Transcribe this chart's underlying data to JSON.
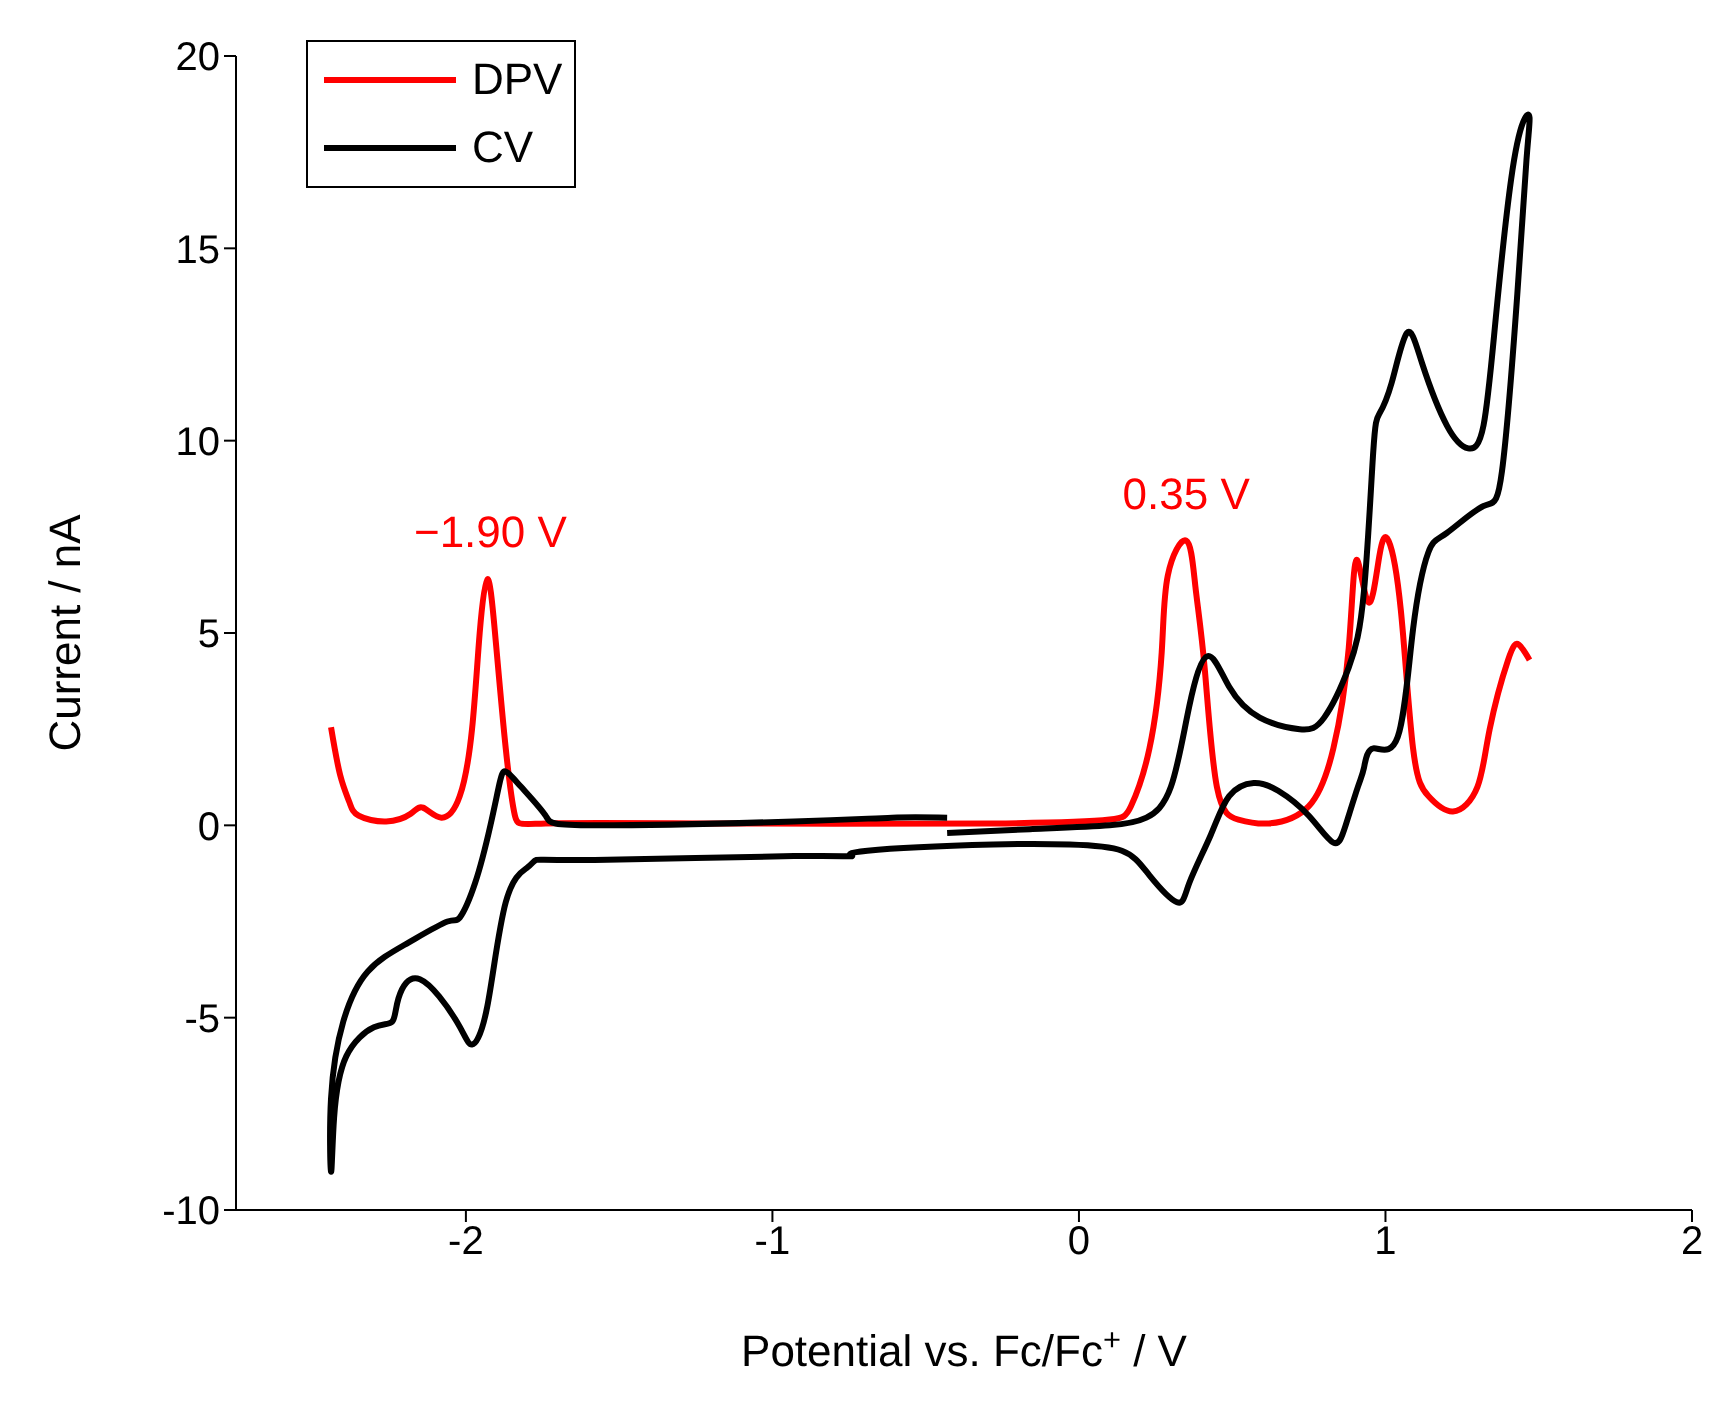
{
  "chart_data": {
    "type": "line",
    "xlabel": "Potential vs. Fc/Fc$^{+}$ / V",
    "ylabel": "Current / nA",
    "xlim": [
      -2.75,
      2
    ],
    "xticks": [
      -2,
      -1,
      0,
      1,
      2
    ],
    "ylim": [
      -10,
      20
    ],
    "yticks": [
      -10,
      -5,
      0,
      5,
      10,
      15,
      20
    ],
    "grid": false,
    "legend": "top left",
    "marker": "none",
    "line_style": "solid",
    "annotations": [
      {
        "text": "−1.90 V",
        "x": -1.92,
        "y": 6.4
      },
      {
        "text": "0.35 V",
        "x": 0.35,
        "y": 7.4
      }
    ],
    "series": [
      {
        "name": "DPV",
        "color": "#ff0000",
        "x": [
          -2.44,
          -2.41,
          -2.38,
          -2.35,
          -2.26,
          -2.18,
          -2.14,
          -2.08,
          -2.02,
          -1.98,
          -1.955,
          -1.93,
          -1.905,
          -1.87,
          -1.84,
          -1.74,
          -1.2,
          -0.28,
          0.1,
          0.17,
          0.23,
          0.27,
          0.29,
          0.35,
          0.38,
          0.41,
          0.45,
          0.52,
          0.62,
          0.75,
          0.83,
          0.88,
          0.905,
          0.944,
          0.98,
          1.01,
          1.05,
          1.09,
          1.14,
          1.22,
          1.3,
          1.34,
          1.4,
          1.435,
          1.47
        ],
        "values": [
          2.55,
          1.3,
          0.6,
          0.25,
          0.1,
          0.3,
          0.46,
          0.2,
          0.76,
          2.5,
          5.0,
          6.4,
          5.0,
          2.0,
          0.25,
          0.05,
          0.05,
          0.05,
          0.15,
          0.5,
          2.0,
          4.5,
          6.5,
          7.4,
          6.2,
          4.1,
          1.0,
          0.15,
          0.05,
          0.5,
          2.0,
          4.6,
          6.9,
          5.8,
          7.0,
          7.4,
          5.6,
          2.0,
          0.76,
          0.36,
          1.0,
          2.5,
          4.3,
          4.7,
          4.3
        ]
      },
      {
        "name": "CV",
        "color": "#000000",
        "x": [
          -0.43,
          -0.16,
          0.1,
          0.22,
          0.3,
          0.36,
          0.42,
          0.49,
          0.59,
          0.72,
          0.8,
          0.88,
          0.93,
          0.96,
          0.98,
          1.02,
          1.07,
          1.12,
          1.2,
          1.27,
          1.32,
          1.36,
          1.41,
          1.45,
          1.47,
          1.46,
          1.43,
          1.38,
          1.32,
          1.2,
          1.14,
          1.09,
          1.04,
          0.96,
          0.93,
          0.91,
          0.87,
          0.83,
          0.75,
          0.65,
          0.57,
          0.49,
          0.43,
          0.36,
          0.32,
          0.23,
          0.14,
          -0.03,
          -0.28,
          -0.69,
          -0.74,
          -0.93,
          -1.58,
          -1.77,
          -1.8,
          -1.87,
          -1.93,
          -1.98,
          -2.03,
          -2.15,
          -2.22,
          -2.24,
          -2.3,
          -2.39,
          -2.43,
          -2.44,
          -2.44,
          -2.4,
          -2.32,
          -2.19,
          -2.06,
          -2.02,
          -1.97,
          -1.92,
          -1.89,
          -1.87,
          -1.82,
          -1.74,
          -1.58,
          -0.93,
          -0.61,
          -0.43
        ],
        "values": [
          -0.2,
          -0.1,
          0,
          0.2,
          1.0,
          3.1,
          4.4,
          3.6,
          2.8,
          2.5,
          2.8,
          4.1,
          6.1,
          9.7,
          10.7,
          11.5,
          12.8,
          12.0,
          10.4,
          9.8,
          10.4,
          13.2,
          16.8,
          18.3,
          18.4,
          17.3,
          13.8,
          9.2,
          8.3,
          7.6,
          7.1,
          5.1,
          2.3,
          2.0,
          1.5,
          1.0,
          0,
          -0.45,
          0.25,
          0.9,
          1.1,
          0.76,
          -0.25,
          -1.5,
          -2.0,
          -1.3,
          -0.66,
          -0.5,
          -0.5,
          -0.66,
          -0.8,
          -0.8,
          -0.9,
          -0.9,
          -1.1,
          -2.0,
          -4.7,
          -5.7,
          -5.1,
          -4.0,
          -4.5,
          -5.1,
          -5.25,
          -6.0,
          -7.6,
          -9.0,
          -7.1,
          -5.1,
          -3.8,
          -3.06,
          -2.5,
          -2.4,
          -1.5,
          0,
          1.1,
          1.4,
          1.0,
          0.25,
          0,
          0.1,
          0.2,
          0.2
        ]
      }
    ]
  }
}
